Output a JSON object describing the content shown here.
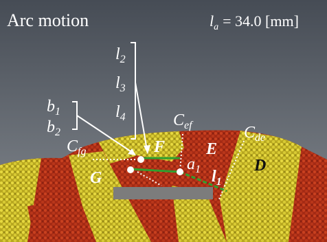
{
  "header": {
    "title": "Arc motion",
    "length": {
      "symbol": "l",
      "sub": "a",
      "text": "= 34.0 [mm]"
    }
  },
  "labels": [
    {
      "base": "l",
      "sub": "2"
    },
    {
      "base": "l",
      "sub": "3"
    },
    {
      "base": "l",
      "sub": "4"
    },
    {
      "base": "b",
      "sub": "1"
    },
    {
      "base": "b",
      "sub": "2"
    },
    {
      "base": "C",
      "sub": "fg"
    },
    {
      "base": "C",
      "sub": "ef"
    },
    {
      "base": "C",
      "sub": "de"
    },
    {
      "base": "a",
      "sub": "1"
    },
    {
      "base": "l",
      "sub": "1"
    }
  ],
  "regions": [
    "F",
    "E",
    "D",
    "G"
  ]
}
